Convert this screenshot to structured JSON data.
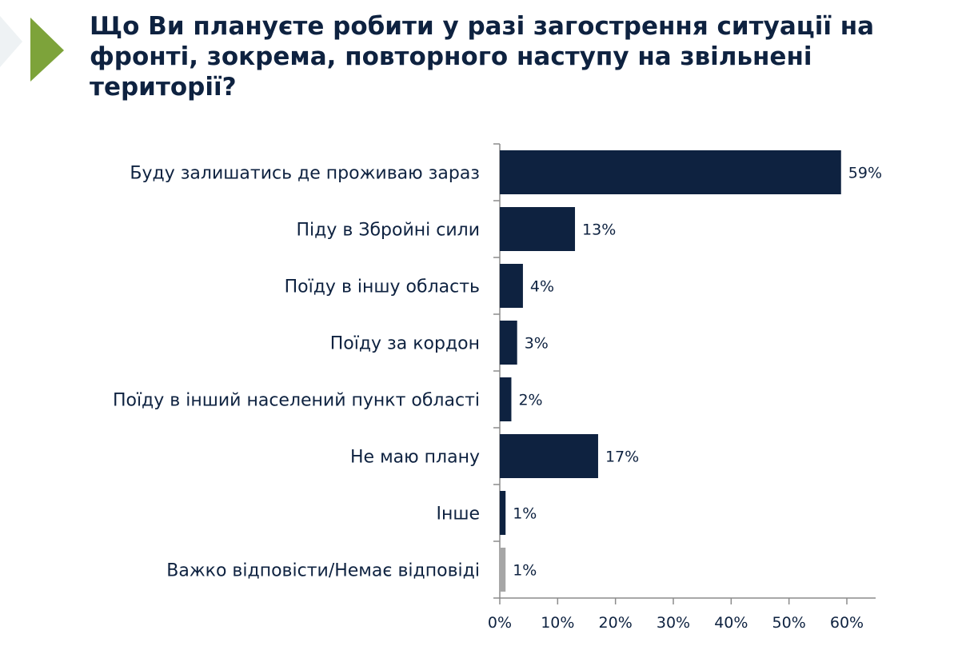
{
  "title": "Що Ви плануєте робити у разі загострення ситуації на фронті, зокрема, повторного наступу на звільнені території?",
  "colors": {
    "bar_primary": "#0e2240",
    "bar_secondary": "#a6a6a6",
    "accent": "#7da33a",
    "axis": "#8c8c8c",
    "text": "#0e2240"
  },
  "chart_data": {
    "type": "bar",
    "orientation": "horizontal",
    "categories": [
      "Буду залишатись де проживаю зараз",
      "Піду в Збройні сили",
      "Поїду в іншу область",
      "Поїду за кордон",
      "Поїду в інший населений пункт області",
      "Не маю плану",
      "Інше",
      "Важко відповісти/Немає відповіді"
    ],
    "values": [
      59,
      13,
      4,
      3,
      2,
      17,
      1,
      1
    ],
    "value_labels": [
      "59%",
      "13%",
      "4%",
      "3%",
      "2%",
      "17%",
      "1%",
      "1%"
    ],
    "bar_colors": [
      "#0e2240",
      "#0e2240",
      "#0e2240",
      "#0e2240",
      "#0e2240",
      "#0e2240",
      "#0e2240",
      "#a6a6a6"
    ],
    "xlim": [
      0,
      60
    ],
    "xticks": [
      0,
      10,
      20,
      30,
      40,
      50,
      60
    ],
    "xtick_labels": [
      "0%",
      "10%",
      "20%",
      "30%",
      "40%",
      "50%",
      "60%"
    ],
    "grid": false,
    "legend": "none"
  }
}
